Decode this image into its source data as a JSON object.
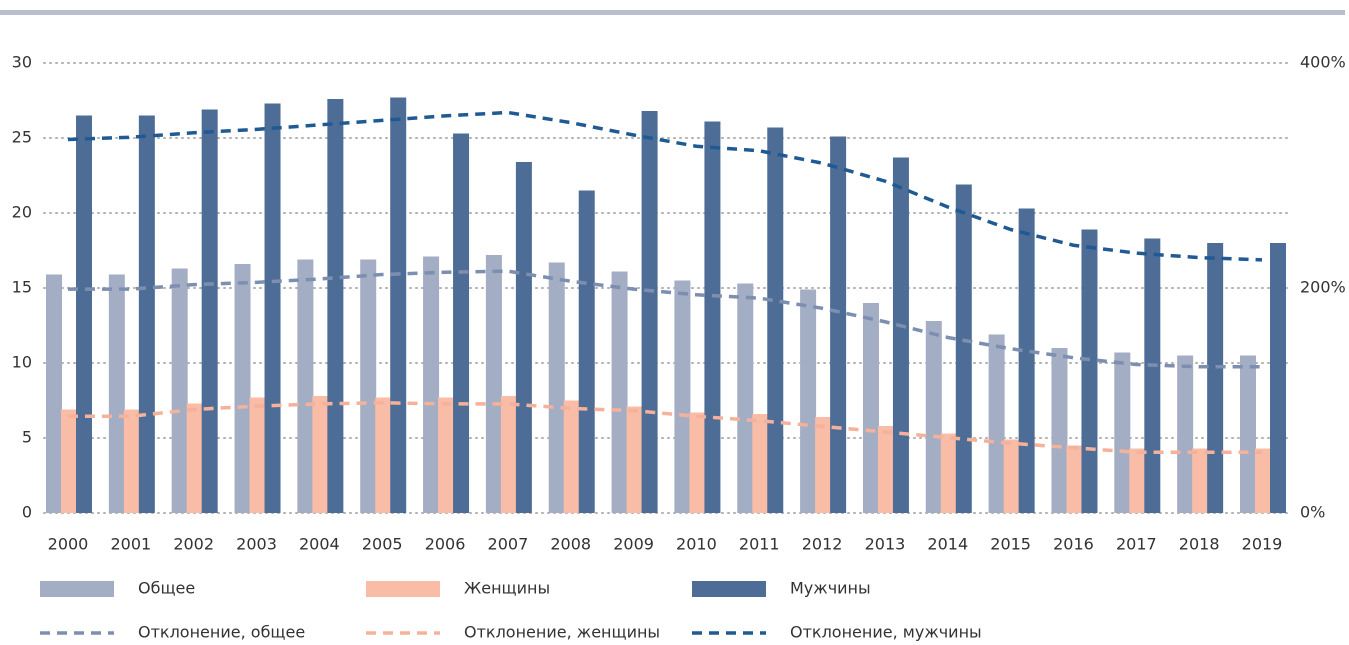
{
  "chart_data": {
    "type": "bar_line",
    "categories": [
      "2000",
      "2001",
      "2002",
      "2003",
      "2004",
      "2005",
      "2006",
      "2007",
      "2008",
      "2009",
      "2010",
      "2011",
      "2012",
      "2013",
      "2014",
      "2015",
      "2016",
      "2017",
      "2018",
      "2019"
    ],
    "series": [
      {
        "name": "Общее",
        "type": "bar",
        "color": "#a3adc4",
        "values": [
          15.9,
          15.9,
          16.3,
          16.6,
          16.9,
          16.9,
          17.1,
          17.2,
          16.7,
          16.1,
          15.5,
          15.3,
          14.9,
          14.0,
          12.8,
          11.9,
          11.0,
          10.7,
          10.5,
          10.5
        ]
      },
      {
        "name": "Женщины",
        "type": "bar",
        "color": "#f9bca6",
        "values": [
          6.9,
          6.9,
          7.3,
          7.7,
          7.8,
          7.7,
          7.7,
          7.8,
          7.5,
          7.1,
          6.7,
          6.6,
          6.4,
          5.8,
          5.3,
          4.9,
          4.5,
          4.3,
          4.3,
          4.3
        ]
      },
      {
        "name": "Мужчины",
        "type": "bar",
        "color": "#4e6d96",
        "values": [
          26.5,
          26.5,
          26.9,
          27.3,
          27.6,
          27.7,
          25.3,
          23.4,
          21.5,
          26.8,
          26.1,
          25.7,
          25.1,
          23.7,
          21.9,
          20.3,
          18.9,
          18.3,
          18.0,
          18.0
        ]
      },
      {
        "name": "Отклонение, общее",
        "type": "line",
        "axis": "y2",
        "color": "#7d8fb0",
        "values": [
          199,
          199,
          203,
          205,
          208,
          212,
          214,
          215,
          206,
          199,
          194,
          191,
          182,
          170,
          156,
          146,
          138,
          132,
          130,
          130
        ]
      },
      {
        "name": "Отклонение, женщины",
        "type": "line",
        "axis": "y2",
        "color": "#f5b19a",
        "values": [
          86,
          86,
          92,
          95,
          97,
          98,
          97,
          97,
          93,
          91,
          86,
          82,
          77,
          72,
          67,
          62,
          58,
          54,
          54,
          54
        ]
      },
      {
        "name": "Отклонение, мужчины",
        "type": "line",
        "axis": "y2",
        "color": "#1f5a93",
        "values": [
          332,
          334,
          338,
          341,
          345,
          349,
          353,
          356,
          347,
          336,
          326,
          322,
          311,
          295,
          272,
          252,
          238,
          231,
          227,
          225
        ]
      }
    ],
    "ylim": [
      0,
      30
    ],
    "yticks": [
      0,
      5,
      10,
      15,
      20,
      25,
      30
    ],
    "y2lim": [
      0,
      400
    ],
    "y2ticks": [
      {
        "value": 0,
        "label": "0%"
      },
      {
        "value": 200,
        "label": "200%"
      },
      {
        "value": 400,
        "label": "400%"
      }
    ],
    "grid": true
  }
}
